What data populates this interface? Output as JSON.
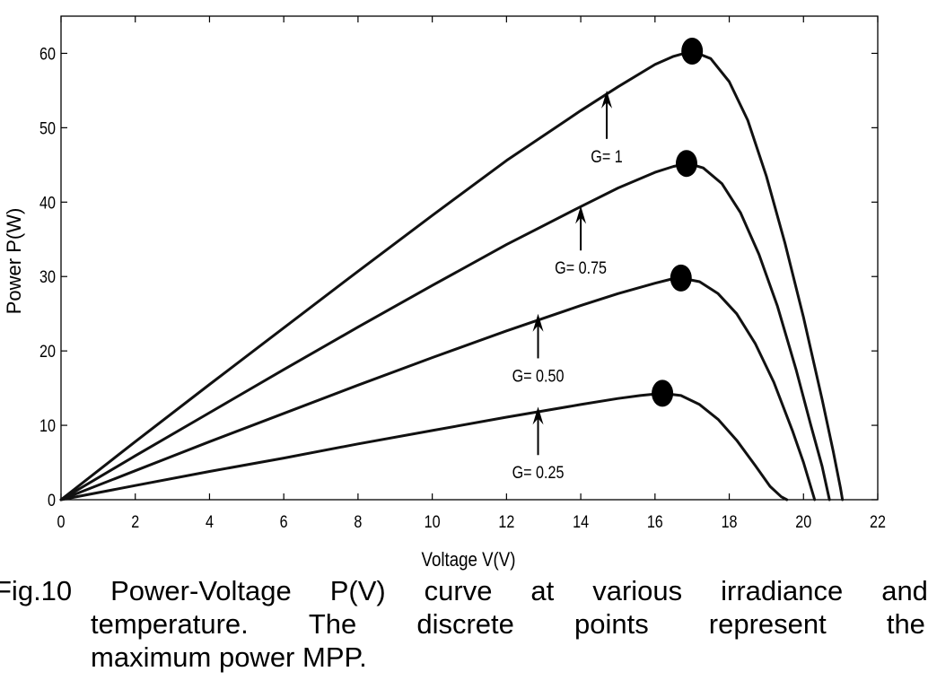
{
  "chart_data": {
    "type": "line",
    "title": "",
    "xlabel": "Voltage V(V)",
    "ylabel": "Power P(W)",
    "xlim": [
      0,
      22
    ],
    "ylim": [
      0,
      65
    ],
    "xticks": [
      0,
      2,
      4,
      6,
      8,
      10,
      12,
      14,
      16,
      18,
      20,
      22
    ],
    "yticks": [
      0,
      10,
      20,
      30,
      40,
      50,
      60
    ],
    "grid": false,
    "series": [
      {
        "name": "G= 1",
        "x": [
          0,
          2,
          4,
          6,
          8,
          10,
          12,
          14,
          15,
          16,
          16.5,
          17,
          17.5,
          18,
          18.5,
          19,
          19.5,
          20,
          20.5,
          20.8,
          21,
          21.05
        ],
        "y": [
          0,
          7.8,
          15.5,
          23.1,
          30.7,
          38.2,
          45.6,
          52.3,
          55.5,
          58.5,
          59.6,
          60.3,
          59.3,
          56.2,
          51.0,
          43.5,
          34.5,
          24.5,
          13.5,
          6.5,
          1.5,
          0
        ]
      },
      {
        "name": "G= 0.75",
        "x": [
          0,
          2,
          4,
          6,
          8,
          10,
          12,
          14,
          15,
          16,
          16.5,
          16.9,
          17.3,
          17.8,
          18.3,
          18.8,
          19.3,
          19.8,
          20.2,
          20.5,
          20.7
        ],
        "y": [
          0,
          5.9,
          11.7,
          17.5,
          23.2,
          28.8,
          34.3,
          39.4,
          41.9,
          44.0,
          44.8,
          45.2,
          44.6,
          42.5,
          38.6,
          33.0,
          26.0,
          17.5,
          10.0,
          4.5,
          0
        ]
      },
      {
        "name": "G= 0.50",
        "x": [
          0,
          2,
          4,
          6,
          8,
          10,
          12,
          14,
          15,
          16,
          16.4,
          16.7,
          17.2,
          17.7,
          18.2,
          18.7,
          19.2,
          19.7,
          20.0,
          20.3
        ],
        "y": [
          0,
          3.9,
          7.8,
          11.6,
          15.4,
          19.1,
          22.7,
          26.1,
          27.7,
          29.1,
          29.6,
          29.8,
          29.3,
          27.7,
          25.0,
          21.0,
          15.8,
          9.3,
          5.0,
          0
        ]
      },
      {
        "name": "G= 0.25",
        "x": [
          0,
          2,
          4,
          6,
          8,
          10,
          12,
          14,
          15,
          15.6,
          16.2,
          16.7,
          17.2,
          17.7,
          18.2,
          18.7,
          19.1,
          19.4,
          19.55
        ],
        "y": [
          0,
          1.9,
          3.8,
          5.6,
          7.5,
          9.3,
          11.1,
          12.8,
          13.6,
          14.0,
          14.3,
          14.0,
          12.8,
          10.8,
          8.0,
          4.6,
          1.8,
          0.4,
          0
        ]
      }
    ],
    "mpp_points": [
      {
        "x": 17.0,
        "y": 60.3
      },
      {
        "x": 16.85,
        "y": 45.2
      },
      {
        "x": 16.7,
        "y": 29.8
      },
      {
        "x": 16.2,
        "y": 14.3
      }
    ],
    "annotations": [
      {
        "text": "G= 1",
        "arrow_x": 14.7,
        "arrow_tail_y": 48.5,
        "arrow_head_y": 55.0
      },
      {
        "text": "G= 0.75",
        "arrow_x": 14.0,
        "arrow_tail_y": 33.5,
        "arrow_head_y": 39.5
      },
      {
        "text": "G= 0.50",
        "arrow_x": 12.85,
        "arrow_tail_y": 19.0,
        "arrow_head_y": 25.0
      },
      {
        "text": "G= 0.25",
        "arrow_x": 12.85,
        "arrow_tail_y": 6.0,
        "arrow_head_y": 12.5
      }
    ]
  },
  "caption": {
    "line1": [
      "Fig.10",
      "Power-Voltage",
      "P(V)",
      "curve",
      "at",
      "various",
      "irradiance",
      "and"
    ],
    "line2": [
      "temperature.",
      "The",
      "discrete",
      "points",
      "represent",
      "the"
    ],
    "line3": "maximum power MPP."
  }
}
